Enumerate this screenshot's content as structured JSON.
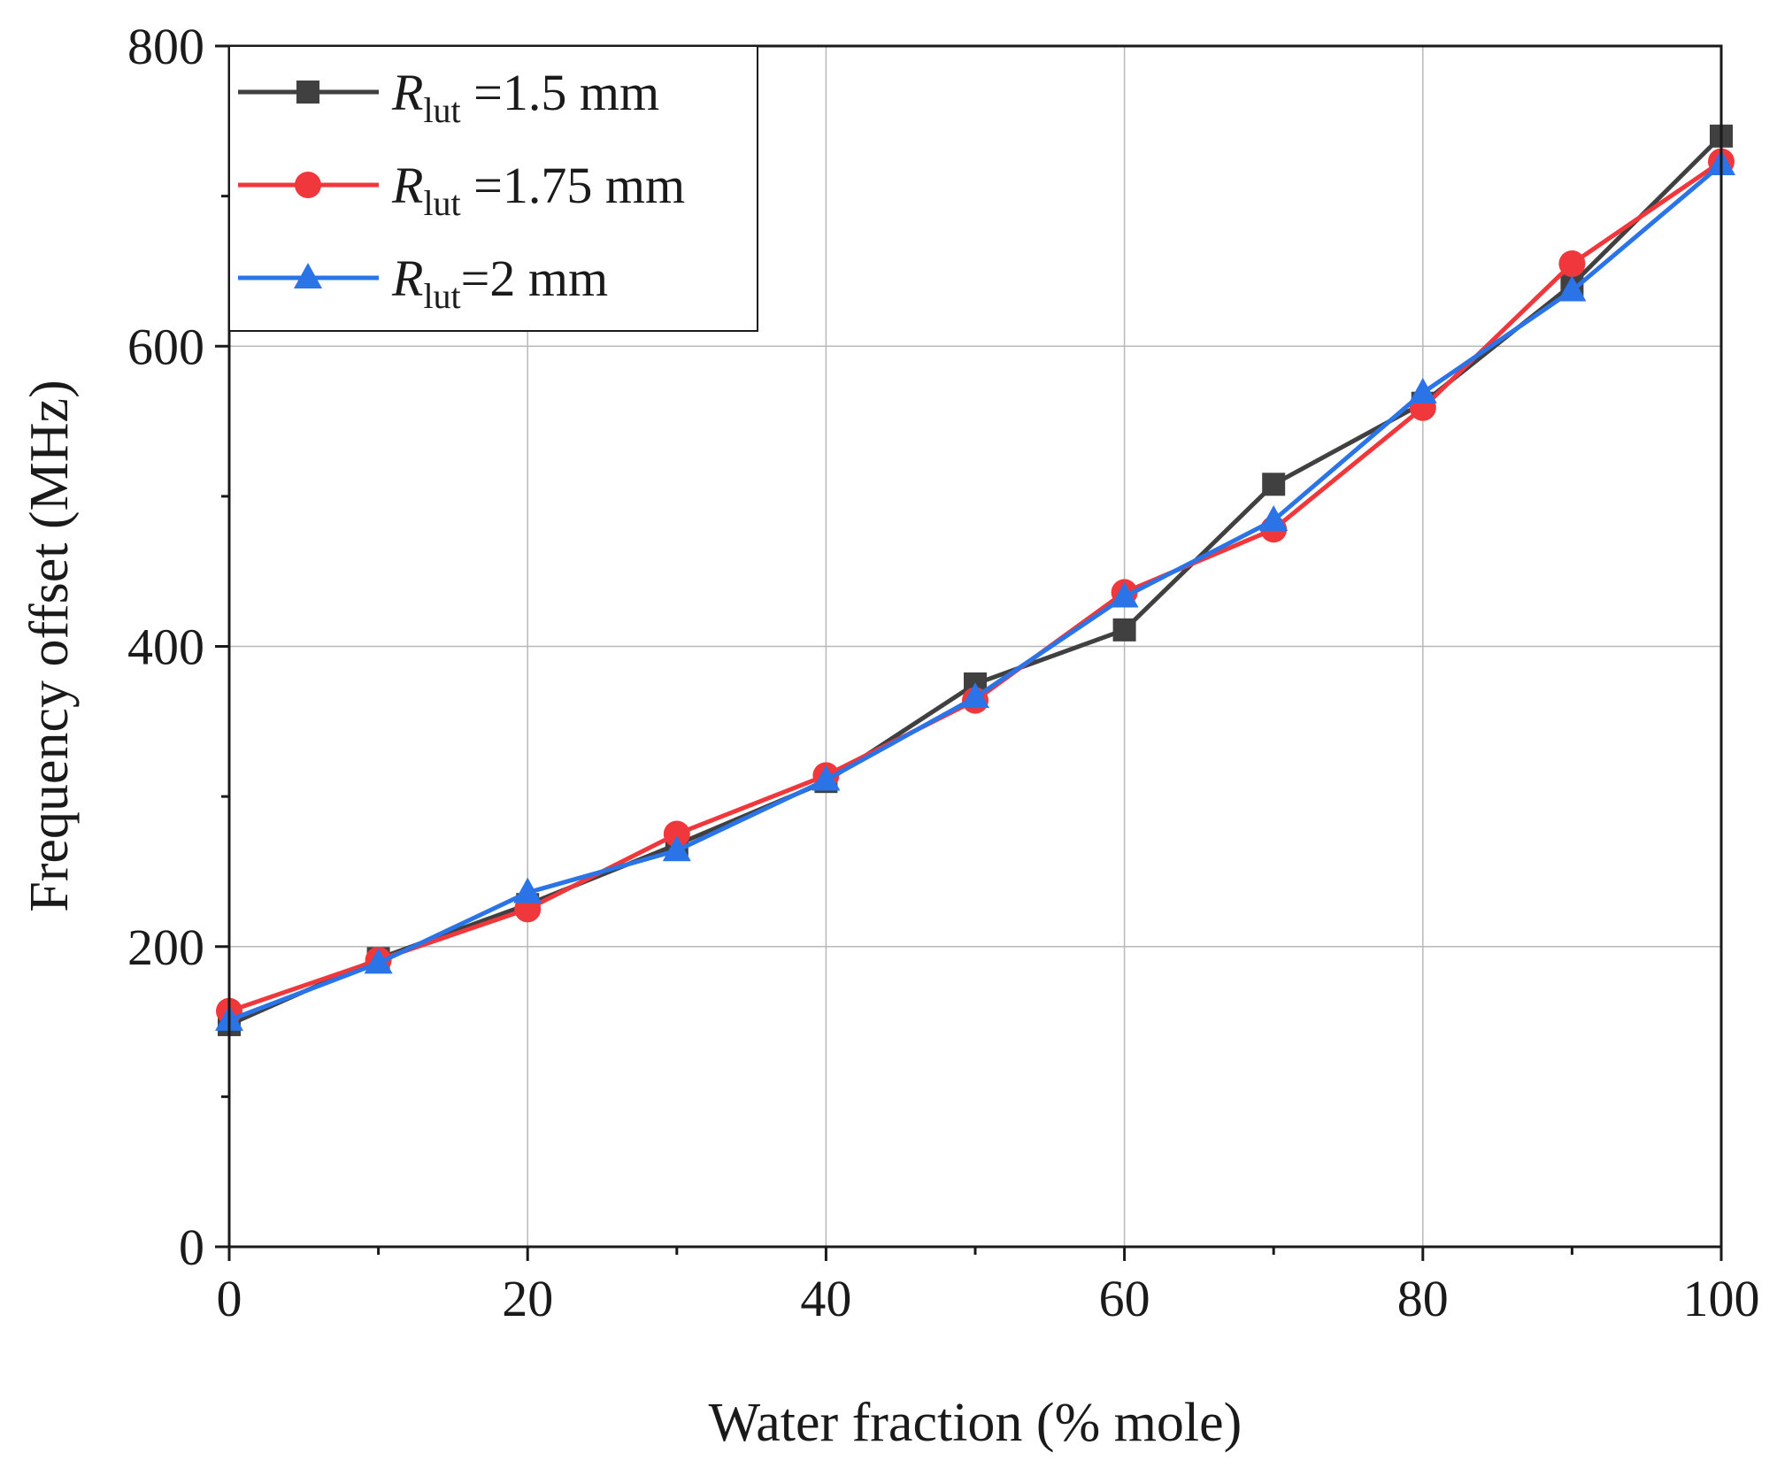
{
  "chart_data": {
    "type": "line",
    "title": "",
    "xlabel": "Water fraction (% mole)",
    "ylabel": "Frequency offset (MHz)",
    "xlim": [
      0,
      100
    ],
    "ylim": [
      0,
      800
    ],
    "xticks": [
      0,
      20,
      40,
      60,
      80,
      100
    ],
    "yticks": [
      0,
      200,
      400,
      600,
      800
    ],
    "x_minor_step": 10,
    "y_minor_step": 100,
    "grid": true,
    "legend_position": "top-left",
    "x": [
      0,
      10,
      20,
      30,
      40,
      50,
      60,
      70,
      80,
      90,
      100
    ],
    "series": [
      {
        "name": "R_lut =1.5 mm",
        "legend_symbol": "R",
        "legend_subscript": "lut",
        "legend_value": " =1.5 mm",
        "marker": "square",
        "color": "#404040",
        "values": [
          148,
          192,
          228,
          268,
          310,
          375,
          411,
          508,
          562,
          641,
          740
        ]
      },
      {
        "name": "R_lut =1.75 mm",
        "legend_symbol": "R",
        "legend_subscript": "lut",
        "legend_value": " =1.75 mm",
        "marker": "circle",
        "color": "#f0383c",
        "values": [
          157,
          191,
          225,
          275,
          314,
          364,
          436,
          478,
          559,
          655,
          723
        ]
      },
      {
        "name": "R_lut =2 mm",
        "legend_symbol": "R",
        "legend_subscript": "lut",
        "legend_value": "=2 mm",
        "marker": "triangle",
        "color": "#2a74e8",
        "values": [
          151,
          189,
          236,
          264,
          311,
          366,
          433,
          484,
          569,
          637,
          721
        ]
      }
    ]
  }
}
